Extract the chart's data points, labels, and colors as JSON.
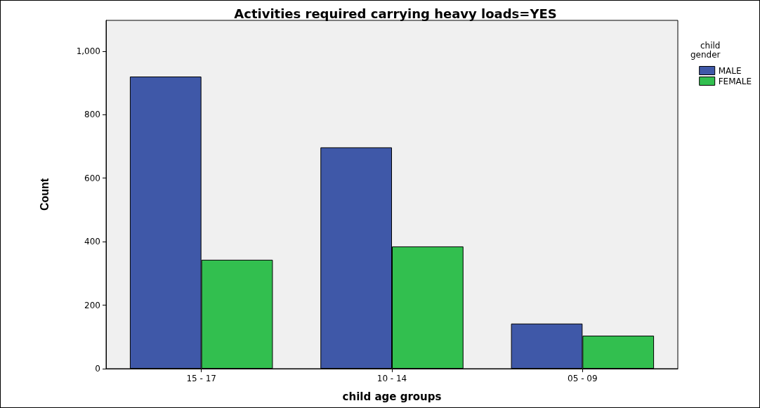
{
  "chart_data": {
    "type": "bar",
    "title": "Activities required carrying heavy loads=YES",
    "xlabel": "child age groups",
    "ylabel": "Count",
    "legend_title": "child\ngender",
    "categories": [
      "15 - 17",
      "10 - 14",
      "05 - 09"
    ],
    "series": [
      {
        "name": "MALE",
        "color": "#3f58a8",
        "values": [
          920,
          697,
          142
        ]
      },
      {
        "name": "FEMALE",
        "color": "#32bf4f",
        "values": [
          343,
          385,
          104
        ]
      }
    ],
    "ylim": [
      0,
      1097
    ],
    "yticks": [
      {
        "value": 0,
        "label": "0"
      },
      {
        "value": 200,
        "label": "200"
      },
      {
        "value": 400,
        "label": "400"
      },
      {
        "value": 600,
        "label": "600"
      },
      {
        "value": 800,
        "label": "800"
      },
      {
        "value": 1000,
        "label": "1,000"
      }
    ],
    "grid": false,
    "legend": "top right"
  }
}
